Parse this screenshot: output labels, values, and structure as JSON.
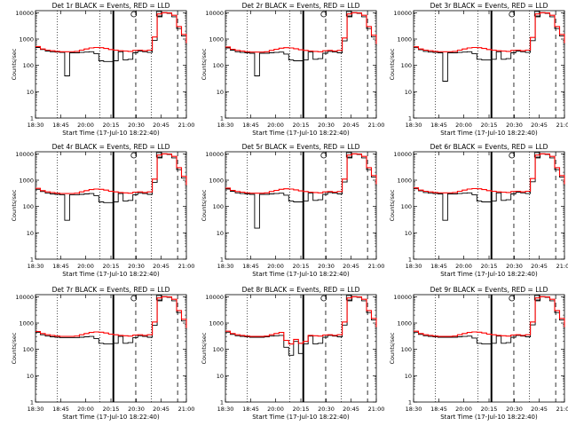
{
  "figure": {
    "panel_titles": [
      "Det 1r BLACK = Events, RED = LLD",
      "Det 2r BLACK = Events, RED = LLD",
      "Det 3r BLACK = Events, RED = LLD",
      "Det 4r BLACK = Events, RED = LLD",
      "Det 5r BLACK = Events, RED = LLD",
      "Det 6r BLACK = Events, RED = LLD",
      "Det 7r BLACK = Events, RED = LLD",
      "Det 8r BLACK = Events, RED = LLD",
      "Det 9r BLACK = Events, RED = LLD"
    ],
    "xlabel": "Start Time (17-Jul-10 18:22:40)",
    "ylabel": "Counts/sec",
    "xtick_labels": [
      "18:30",
      "18:45",
      "20:00",
      "20:15",
      "20:30",
      "20:45",
      "21:00"
    ],
    "ytick_labels": [
      "1",
      "10",
      "100",
      "1000",
      "10000"
    ]
  },
  "colors": {
    "events": "#000000",
    "lld": "#ff0000",
    "axes": "#000000",
    "background": "#ffffff"
  },
  "chart_data": [
    {
      "type": "line",
      "title": "Det 1r BLACK = Events, RED = LLD",
      "xlabel": "Start Time (17-Jul-10 18:22:40)",
      "ylabel": "Counts/sec",
      "y_scale": "log",
      "ylim": [
        1,
        12000
      ],
      "x_ticks": [
        "18:30",
        "18:45",
        "20:00",
        "20:15",
        "20:30",
        "20:45",
        "21:00"
      ],
      "x": [
        0,
        1,
        2,
        3,
        4,
        5,
        6,
        7,
        8,
        9,
        10,
        11,
        12,
        13,
        14,
        15,
        16,
        17,
        18,
        19,
        20,
        21,
        22,
        23,
        24,
        25,
        26,
        27,
        28,
        29,
        30,
        31
      ],
      "series": [
        {
          "name": "BLACK = Events",
          "values": [
            480,
            400,
            350,
            330,
            320,
            310,
            40,
            300,
            300,
            310,
            320,
            330,
            280,
            150,
            140,
            140,
            150,
            330,
            160,
            170,
            300,
            350,
            330,
            310,
            900,
            7000,
            10000,
            9500,
            7000,
            2500,
            1300,
            600
          ]
        },
        {
          "name": "RED = LLD",
          "values": [
            520,
            420,
            380,
            360,
            340,
            330,
            330,
            330,
            340,
            380,
            420,
            460,
            480,
            470,
            440,
            400,
            380,
            360,
            350,
            340,
            370,
            380,
            360,
            380,
            1200,
            9000,
            10000,
            9800,
            8000,
            3000,
            1500,
            700
          ]
        }
      ]
    },
    {
      "type": "line",
      "title": "Det 2r BLACK = Events, RED = LLD",
      "xlabel": "Start Time (17-Jul-10 18:22:40)",
      "ylabel": "Counts/sec",
      "y_scale": "log",
      "ylim": [
        1,
        12000
      ],
      "x_ticks": [
        "18:30",
        "18:45",
        "20:00",
        "20:15",
        "20:30",
        "20:45",
        "21:00"
      ],
      "x": [
        0,
        1,
        2,
        3,
        4,
        5,
        6,
        7,
        8,
        9,
        10,
        11,
        12,
        13,
        14,
        15,
        16,
        17,
        18,
        19,
        20,
        21,
        22,
        23,
        24,
        25,
        26,
        27,
        28,
        29,
        30,
        31
      ],
      "series": [
        {
          "name": "BLACK = Events",
          "values": [
            460,
            380,
            330,
            310,
            300,
            290,
            40,
            290,
            290,
            300,
            310,
            320,
            270,
            160,
            150,
            150,
            160,
            320,
            170,
            180,
            290,
            340,
            320,
            300,
            850,
            7000,
            10000,
            9500,
            7000,
            2500,
            1200,
            550
          ]
        },
        {
          "name": "RED = LLD",
          "values": [
            500,
            410,
            370,
            350,
            330,
            320,
            320,
            320,
            330,
            370,
            410,
            450,
            470,
            460,
            430,
            390,
            370,
            350,
            340,
            330,
            360,
            370,
            350,
            370,
            1100,
            9000,
            10000,
            9800,
            8000,
            3000,
            1400,
            650
          ]
        }
      ]
    },
    {
      "type": "line",
      "title": "Det 3r BLACK = Events, RED = LLD",
      "xlabel": "Start Time (17-Jul-10 18:22:40)",
      "ylabel": "Counts/sec",
      "y_scale": "log",
      "ylim": [
        1,
        12000
      ],
      "x_ticks": [
        "18:30",
        "18:45",
        "20:00",
        "20:15",
        "20:30",
        "20:45",
        "21:00"
      ],
      "x": [
        0,
        1,
        2,
        3,
        4,
        5,
        6,
        7,
        8,
        9,
        10,
        11,
        12,
        13,
        14,
        15,
        16,
        17,
        18,
        19,
        20,
        21,
        22,
        23,
        24,
        25,
        26,
        27,
        28,
        29,
        30,
        31
      ],
      "series": [
        {
          "name": "BLACK = Events",
          "values": [
            470,
            390,
            340,
            320,
            310,
            300,
            25,
            300,
            300,
            310,
            320,
            330,
            280,
            170,
            160,
            160,
            170,
            330,
            170,
            180,
            300,
            350,
            330,
            310,
            870,
            7000,
            10000,
            9500,
            7000,
            2500,
            1300,
            600
          ]
        },
        {
          "name": "RED = LLD",
          "values": [
            510,
            420,
            380,
            360,
            340,
            330,
            330,
            330,
            340,
            380,
            420,
            460,
            480,
            470,
            440,
            400,
            380,
            360,
            350,
            340,
            370,
            380,
            360,
            380,
            1150,
            9000,
            10000,
            9800,
            8000,
            3000,
            1500,
            700
          ]
        }
      ]
    },
    {
      "type": "line",
      "title": "Det 4r BLACK = Events, RED = LLD",
      "xlabel": "Start Time (17-Jul-10 18:22:40)",
      "ylabel": "Counts/sec",
      "y_scale": "log",
      "ylim": [
        1,
        12000
      ],
      "x_ticks": [
        "18:30",
        "18:45",
        "20:00",
        "20:15",
        "20:30",
        "20:45",
        "21:00"
      ],
      "x": [
        0,
        1,
        2,
        3,
        4,
        5,
        6,
        7,
        8,
        9,
        10,
        11,
        12,
        13,
        14,
        15,
        16,
        17,
        18,
        19,
        20,
        21,
        22,
        23,
        24,
        25,
        26,
        27,
        28,
        29,
        30,
        31
      ],
      "series": [
        {
          "name": "BLACK = Events",
          "values": [
            450,
            370,
            320,
            300,
            290,
            280,
            30,
            280,
            280,
            290,
            300,
            310,
            260,
            150,
            140,
            140,
            150,
            310,
            160,
            170,
            280,
            330,
            310,
            290,
            830,
            7000,
            10000,
            9500,
            7000,
            2500,
            1200,
            550
          ]
        },
        {
          "name": "RED = LLD",
          "values": [
            490,
            400,
            360,
            340,
            320,
            310,
            310,
            310,
            320,
            360,
            400,
            440,
            460,
            450,
            420,
            380,
            360,
            340,
            330,
            320,
            350,
            360,
            340,
            360,
            1100,
            9000,
            10000,
            9800,
            8000,
            3000,
            1400,
            650
          ]
        }
      ]
    },
    {
      "type": "line",
      "title": "Det 5r BLACK = Events, RED = LLD",
      "xlabel": "Start Time (17-Jul-10 18:22:40)",
      "ylabel": "Counts/sec",
      "y_scale": "log",
      "ylim": [
        1,
        12000
      ],
      "x_ticks": [
        "18:30",
        "18:45",
        "20:00",
        "20:15",
        "20:30",
        "20:45",
        "21:00"
      ],
      "x": [
        0,
        1,
        2,
        3,
        4,
        5,
        6,
        7,
        8,
        9,
        10,
        11,
        12,
        13,
        14,
        15,
        16,
        17,
        18,
        19,
        20,
        21,
        22,
        23,
        24,
        25,
        26,
        27,
        28,
        29,
        30,
        31
      ],
      "series": [
        {
          "name": "BLACK = Events",
          "values": [
            460,
            380,
            330,
            310,
            300,
            290,
            15,
            290,
            290,
            300,
            310,
            320,
            270,
            160,
            150,
            150,
            160,
            320,
            170,
            180,
            290,
            340,
            320,
            300,
            850,
            7000,
            10000,
            9500,
            7000,
            2500,
            1300,
            600
          ]
        },
        {
          "name": "RED = LLD",
          "values": [
            500,
            410,
            370,
            350,
            330,
            320,
            320,
            320,
            330,
            370,
            410,
            450,
            470,
            460,
            430,
            390,
            370,
            350,
            340,
            330,
            360,
            370,
            350,
            370,
            1100,
            9000,
            10000,
            9800,
            8000,
            3000,
            1500,
            700
          ]
        }
      ]
    },
    {
      "type": "line",
      "title": "Det 6r BLACK = Events, RED = LLD",
      "xlabel": "Start Time (17-Jul-10 18:22:40)",
      "ylabel": "Counts/sec",
      "y_scale": "log",
      "ylim": [
        1,
        12000
      ],
      "x_ticks": [
        "18:30",
        "18:45",
        "20:00",
        "20:15",
        "20:30",
        "20:45",
        "21:00"
      ],
      "x": [
        0,
        1,
        2,
        3,
        4,
        5,
        6,
        7,
        8,
        9,
        10,
        11,
        12,
        13,
        14,
        15,
        16,
        17,
        18,
        19,
        20,
        21,
        22,
        23,
        24,
        25,
        26,
        27,
        28,
        29,
        30,
        31
      ],
      "series": [
        {
          "name": "BLACK = Events",
          "values": [
            470,
            390,
            340,
            320,
            310,
            300,
            30,
            300,
            300,
            310,
            320,
            330,
            280,
            160,
            150,
            150,
            160,
            330,
            170,
            180,
            300,
            350,
            330,
            310,
            870,
            7000,
            10000,
            9500,
            7000,
            2500,
            1300,
            600
          ]
        },
        {
          "name": "RED = LLD",
          "values": [
            510,
            420,
            380,
            360,
            340,
            330,
            330,
            330,
            340,
            380,
            420,
            460,
            480,
            470,
            440,
            400,
            380,
            360,
            350,
            340,
            370,
            380,
            360,
            380,
            1150,
            9000,
            10000,
            9800,
            8000,
            3000,
            1500,
            700
          ]
        }
      ]
    },
    {
      "type": "line",
      "title": "Det 7r BLACK = Events, RED = LLD",
      "xlabel": "Start Time (17-Jul-10 18:22:40)",
      "ylabel": "Counts/sec",
      "y_scale": "log",
      "ylim": [
        1,
        12000
      ],
      "x_ticks": [
        "18:30",
        "18:45",
        "20:00",
        "20:15",
        "20:30",
        "20:45",
        "21:00"
      ],
      "x": [
        0,
        1,
        2,
        3,
        4,
        5,
        6,
        7,
        8,
        9,
        10,
        11,
        12,
        13,
        14,
        15,
        16,
        17,
        18,
        19,
        20,
        21,
        22,
        23,
        24,
        25,
        26,
        27,
        28,
        29,
        30,
        31
      ],
      "series": [
        {
          "name": "BLACK = Events",
          "values": [
            440,
            360,
            320,
            300,
            290,
            280,
            280,
            280,
            280,
            290,
            300,
            310,
            260,
            170,
            160,
            160,
            170,
            310,
            170,
            180,
            280,
            330,
            310,
            290,
            820,
            7000,
            10000,
            9500,
            7000,
            2500,
            1200,
            550
          ]
        },
        {
          "name": "RED = LLD",
          "values": [
            480,
            400,
            360,
            340,
            320,
            310,
            310,
            310,
            320,
            360,
            400,
            440,
            460,
            450,
            420,
            380,
            360,
            340,
            330,
            320,
            350,
            360,
            340,
            360,
            1100,
            9000,
            10000,
            9800,
            8000,
            3000,
            1400,
            650
          ]
        }
      ]
    },
    {
      "type": "line",
      "title": "Det 8r BLACK = Events, RED = LLD",
      "xlabel": "Start Time (17-Jul-10 18:22:40)",
      "ylabel": "Counts/sec",
      "y_scale": "log",
      "ylim": [
        1,
        12000
      ],
      "x_ticks": [
        "18:30",
        "18:45",
        "20:00",
        "20:15",
        "20:30",
        "20:45",
        "21:00"
      ],
      "x": [
        0,
        1,
        2,
        3,
        4,
        5,
        6,
        7,
        8,
        9,
        10,
        11,
        12,
        13,
        14,
        15,
        16,
        17,
        18,
        19,
        20,
        21,
        22,
        23,
        24,
        25,
        26,
        27,
        28,
        29,
        30,
        31
      ],
      "series": [
        {
          "name": "BLACK = Events",
          "values": [
            450,
            370,
            330,
            310,
            300,
            290,
            290,
            290,
            300,
            320,
            330,
            340,
            120,
            60,
            200,
            70,
            160,
            320,
            160,
            170,
            290,
            340,
            320,
            300,
            840,
            7000,
            10000,
            9500,
            7000,
            2500,
            1300,
            600
          ]
        },
        {
          "name": "RED = LLD",
          "values": [
            490,
            400,
            360,
            340,
            320,
            310,
            310,
            310,
            320,
            360,
            400,
            440,
            220,
            160,
            240,
            170,
            200,
            340,
            330,
            320,
            350,
            360,
            340,
            360,
            1100,
            9000,
            10000,
            9800,
            8000,
            3000,
            1500,
            700
          ]
        }
      ]
    },
    {
      "type": "line",
      "title": "Det 9r BLACK = Events, RED = LLD",
      "xlabel": "Start Time (17-Jul-10 18:22:40)",
      "ylabel": "Counts/sec",
      "y_scale": "log",
      "ylim": [
        1,
        12000
      ],
      "x_ticks": [
        "18:30",
        "18:45",
        "20:00",
        "20:15",
        "20:30",
        "20:45",
        "21:00"
      ],
      "x": [
        0,
        1,
        2,
        3,
        4,
        5,
        6,
        7,
        8,
        9,
        10,
        11,
        12,
        13,
        14,
        15,
        16,
        17,
        18,
        19,
        20,
        21,
        22,
        23,
        24,
        25,
        26,
        27,
        28,
        29,
        30,
        31
      ],
      "series": [
        {
          "name": "BLACK = Events",
          "values": [
            450,
            370,
            330,
            310,
            300,
            290,
            290,
            290,
            290,
            300,
            310,
            320,
            270,
            170,
            160,
            160,
            170,
            320,
            170,
            180,
            290,
            340,
            320,
            300,
            850,
            7000,
            10000,
            9500,
            7000,
            2500,
            1300,
            600
          ]
        },
        {
          "name": "RED = LLD",
          "values": [
            490,
            400,
            360,
            340,
            320,
            310,
            310,
            310,
            320,
            360,
            400,
            440,
            460,
            450,
            420,
            380,
            360,
            340,
            330,
            320,
            350,
            360,
            340,
            360,
            1100,
            9000,
            10000,
            9800,
            8000,
            3000,
            1500,
            700
          ]
        }
      ]
    }
  ]
}
